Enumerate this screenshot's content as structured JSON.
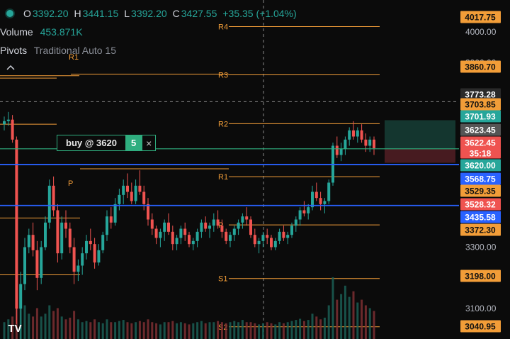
{
  "legend": {
    "open_label": "O",
    "open": "3392.20",
    "high_label": "H",
    "high": "3441.15",
    "low_label": "L",
    "low": "3392.20",
    "close_label": "C",
    "close": "3427.55",
    "change": "+35.35 (+1.04%)",
    "volume_label": "Volume",
    "volume": "453.871K",
    "pivots_label": "Pivots",
    "pivots_settings": "Traditional Auto 15"
  },
  "order": {
    "label": "buy @ 3620",
    "qty": "5",
    "close_symbol": "×"
  },
  "icons": {
    "collapse": "chevron-up-icon",
    "logo": "tradingview-logo-icon",
    "status": "status-dot-icon"
  },
  "logo_text": "TV",
  "colors": {
    "up": "#26a69a",
    "down": "#ef5350",
    "pivot": "#f29d38",
    "blue": "#2962ff",
    "order": "#2fae7f"
  },
  "chart_data": {
    "type": "candlestick",
    "y_axis": {
      "range": [
        3000,
        4050
      ],
      "ticks": [
        "3900.00",
        "3800.00",
        "3300.00",
        "3100.00"
      ],
      "partial_tick": "4000.00"
    },
    "crosshair": {
      "price": "3773.28"
    },
    "pivots": [
      {
        "name": "R4",
        "value": 4017.75
      },
      {
        "name": "R3",
        "value": 3860.7
      },
      {
        "name": "R2",
        "value": 3701.93
      },
      {
        "name": "R1",
        "value": 3529.35
      },
      {
        "name": "P",
        "value": 3372.3
      },
      {
        "name": "S1",
        "value": 3198.0
      },
      {
        "name": "S2",
        "value": 3040.95
      }
    ],
    "previous_pivots": [
      {
        "name": "R1",
        "value": 3850.0
      },
      {
        "name": "P",
        "value": 3555.0
      }
    ],
    "horizontal_lines": [
      {
        "price": 3568.75,
        "color": "#2962ff"
      },
      {
        "price": 3435.58,
        "color": "#2962ff"
      },
      {
        "price": 3620.0,
        "color": "#2fae7f"
      }
    ],
    "position": {
      "entry": 3620.0,
      "target": 3703.85,
      "stop": 3528.32
    },
    "price_labels": [
      {
        "text": "4017.75",
        "bg": "#f29d38",
        "fg": "#111111"
      },
      {
        "text": "3860.70",
        "bg": "#f29d38",
        "fg": "#111111"
      },
      {
        "text": "3773.28",
        "bg": "#2a2a2a",
        "fg": "#ffffff"
      },
      {
        "text": "3703.85",
        "bg": "#f29d38",
        "fg": "#111111"
      },
      {
        "text": "3701.93",
        "bg": "#26a69a",
        "fg": "#ffffff"
      },
      {
        "text": "3623.45",
        "bg": "#555555",
        "fg": "#ffffff"
      },
      {
        "text": "3622.45",
        "bg": "#ef5350",
        "fg": "#ffffff"
      },
      {
        "text": "35:18",
        "bg": "#ef5350",
        "fg": "#ffffff"
      },
      {
        "text": "3620.00",
        "bg": "#26a69a",
        "fg": "#ffffff"
      },
      {
        "text": "3568.75",
        "bg": "#2962ff",
        "fg": "#ffffff"
      },
      {
        "text": "3529.35",
        "bg": "#f29d38",
        "fg": "#111111"
      },
      {
        "text": "3528.32",
        "bg": "#ef5350",
        "fg": "#ffffff"
      },
      {
        "text": "3435.58",
        "bg": "#2962ff",
        "fg": "#ffffff"
      },
      {
        "text": "3372.30",
        "bg": "#f29d38",
        "fg": "#111111"
      },
      {
        "text": "3198.00",
        "bg": "#f29d38",
        "fg": "#111111"
      },
      {
        "text": "3040.95",
        "bg": "#f29d38",
        "fg": "#111111"
      }
    ],
    "candles": [
      [
        3700,
        3725,
        3680,
        3710
      ],
      [
        3710,
        3740,
        3695,
        3715
      ],
      [
        3715,
        3730,
        3640,
        3650
      ],
      [
        3650,
        3660,
        3050,
        3100
      ],
      [
        3100,
        3220,
        3000,
        3180
      ],
      [
        3180,
        3330,
        3160,
        3300
      ],
      [
        3300,
        3360,
        3280,
        3340
      ],
      [
        3340,
        3380,
        3270,
        3290
      ],
      [
        3290,
        3320,
        3160,
        3200
      ],
      [
        3200,
        3320,
        3180,
        3300
      ],
      [
        3300,
        3400,
        3290,
        3380
      ],
      [
        3380,
        3520,
        3360,
        3500
      ],
      [
        3500,
        3530,
        3400,
        3420
      ],
      [
        3420,
        3440,
        3250,
        3280
      ],
      [
        3280,
        3400,
        3260,
        3380
      ],
      [
        3380,
        3420,
        3330,
        3360
      ],
      [
        3360,
        3380,
        3280,
        3300
      ],
      [
        3300,
        3330,
        3180,
        3220
      ],
      [
        3220,
        3260,
        3190,
        3240
      ],
      [
        3240,
        3300,
        3210,
        3280
      ],
      [
        3280,
        3340,
        3260,
        3320
      ],
      [
        3320,
        3360,
        3290,
        3310
      ],
      [
        3310,
        3330,
        3230,
        3250
      ],
      [
        3250,
        3310,
        3240,
        3290
      ],
      [
        3290,
        3350,
        3280,
        3340
      ],
      [
        3340,
        3420,
        3320,
        3400
      ],
      [
        3400,
        3430,
        3360,
        3380
      ],
      [
        3380,
        3460,
        3370,
        3440
      ],
      [
        3440,
        3490,
        3420,
        3470
      ],
      [
        3470,
        3520,
        3440,
        3500
      ],
      [
        3500,
        3540,
        3460,
        3480
      ],
      [
        3480,
        3510,
        3440,
        3450
      ],
      [
        3450,
        3520,
        3440,
        3500
      ],
      [
        3500,
        3550,
        3470,
        3480
      ],
      [
        3480,
        3500,
        3420,
        3440
      ],
      [
        3440,
        3460,
        3370,
        3390
      ],
      [
        3390,
        3410,
        3340,
        3360
      ],
      [
        3360,
        3370,
        3310,
        3330
      ],
      [
        3330,
        3360,
        3300,
        3350
      ],
      [
        3350,
        3390,
        3320,
        3380
      ],
      [
        3380,
        3410,
        3340,
        3350
      ],
      [
        3350,
        3370,
        3290,
        3310
      ],
      [
        3310,
        3340,
        3290,
        3330
      ],
      [
        3330,
        3370,
        3310,
        3360
      ],
      [
        3360,
        3380,
        3320,
        3340
      ],
      [
        3340,
        3350,
        3300,
        3310
      ],
      [
        3310,
        3330,
        3290,
        3320
      ],
      [
        3320,
        3360,
        3300,
        3350
      ],
      [
        3350,
        3390,
        3330,
        3380
      ],
      [
        3380,
        3400,
        3350,
        3360
      ],
      [
        3360,
        3380,
        3330,
        3370
      ],
      [
        3370,
        3410,
        3350,
        3390
      ],
      [
        3390,
        3420,
        3360,
        3370
      ],
      [
        3370,
        3390,
        3330,
        3350
      ],
      [
        3350,
        3360,
        3310,
        3320
      ],
      [
        3320,
        3350,
        3300,
        3340
      ],
      [
        3340,
        3370,
        3320,
        3360
      ],
      [
        3360,
        3390,
        3340,
        3380
      ],
      [
        3380,
        3410,
        3360,
        3400
      ],
      [
        3400,
        3430,
        3370,
        3390
      ],
      [
        3390,
        3400,
        3330,
        3340
      ],
      [
        3340,
        3360,
        3300,
        3310
      ],
      [
        3310,
        3330,
        3280,
        3320
      ],
      [
        3320,
        3350,
        3300,
        3340
      ],
      [
        3340,
        3360,
        3310,
        3330
      ],
      [
        3330,
        3340,
        3290,
        3300
      ],
      [
        3300,
        3330,
        3290,
        3320
      ],
      [
        3320,
        3360,
        3310,
        3350
      ],
      [
        3350,
        3370,
        3320,
        3330
      ],
      [
        3330,
        3350,
        3310,
        3340
      ],
      [
        3340,
        3380,
        3330,
        3370
      ],
      [
        3370,
        3400,
        3350,
        3390
      ],
      [
        3390,
        3430,
        3370,
        3420
      ],
      [
        3420,
        3450,
        3400,
        3410
      ],
      [
        3410,
        3440,
        3390,
        3430
      ],
      [
        3430,
        3500,
        3420,
        3480
      ],
      [
        3480,
        3510,
        3450,
        3460
      ],
      [
        3460,
        3480,
        3420,
        3440
      ],
      [
        3440,
        3460,
        3410,
        3450
      ],
      [
        3450,
        3520,
        3440,
        3510
      ],
      [
        3510,
        3640,
        3500,
        3630
      ],
      [
        3630,
        3660,
        3590,
        3600
      ],
      [
        3600,
        3640,
        3580,
        3620
      ],
      [
        3620,
        3660,
        3600,
        3650
      ],
      [
        3650,
        3690,
        3630,
        3680
      ],
      [
        3680,
        3710,
        3650,
        3660
      ],
      [
        3660,
        3690,
        3640,
        3680
      ],
      [
        3680,
        3700,
        3640,
        3650
      ],
      [
        3650,
        3670,
        3610,
        3630
      ],
      [
        3630,
        3660,
        3610,
        3650
      ],
      [
        3650,
        3660,
        3600,
        3622
      ]
    ],
    "volume": [
      30,
      35,
      40,
      120,
      95,
      60,
      45,
      40,
      55,
      40,
      45,
      60,
      50,
      55,
      40,
      35,
      38,
      50,
      35,
      30,
      32,
      30,
      35,
      30,
      28,
      35,
      30,
      30,
      32,
      34,
      30,
      28,
      30,
      32,
      30,
      35,
      30,
      28,
      26,
      30,
      30,
      32,
      28,
      30,
      28,
      26,
      28,
      30,
      32,
      28,
      30,
      30,
      32,
      30,
      28,
      30,
      32,
      30,
      34,
      30,
      30,
      28,
      26,
      28,
      30,
      28,
      26,
      30,
      28,
      30,
      32,
      34,
      36,
      32,
      34,
      45,
      40,
      35,
      38,
      60,
      110,
      70,
      80,
      95,
      75,
      85,
      65,
      70,
      60,
      55,
      50
    ]
  }
}
